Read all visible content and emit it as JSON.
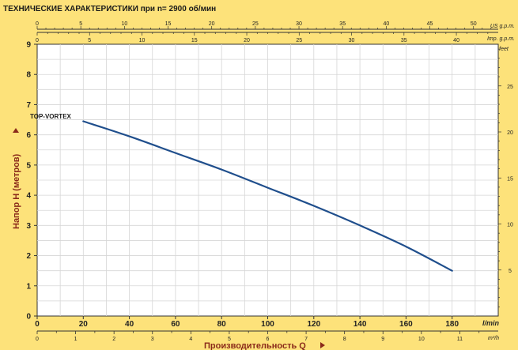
{
  "chart_data": {
    "type": "line",
    "title": "ТЕХНИЧЕСКИЕ ХАРАКТЕРИСТИКИ при n= 2900 об/мин",
    "xlabel": "Производительность Q",
    "ylabel": "Напор Н  (метров)",
    "x_unit": "l/min",
    "xlim": [
      0,
      200
    ],
    "ylim": [
      0,
      9
    ],
    "x_ticks": [
      0,
      20,
      40,
      60,
      80,
      100,
      120,
      140,
      160,
      180
    ],
    "y_ticks": [
      0,
      1,
      2,
      3,
      4,
      5,
      6,
      7,
      8,
      9
    ],
    "secondary_axes": {
      "m3h": {
        "unit": "m³/h",
        "range": [
          0,
          12
        ],
        "ticks": [
          0,
          1,
          2,
          3,
          4,
          5,
          6,
          7,
          8,
          9,
          10,
          11
        ]
      },
      "us_gpm": {
        "unit": "US g.p.m.",
        "range": [
          0,
          52.834
        ],
        "ticks": [
          0,
          5,
          10,
          15,
          20,
          25,
          30,
          35,
          40,
          45,
          50
        ]
      },
      "imp_gpm": {
        "unit": "Imp. g.p.m.",
        "range": [
          0,
          43.994
        ],
        "ticks": [
          0,
          5,
          10,
          15,
          20,
          25,
          30,
          35,
          40
        ]
      },
      "feet": {
        "unit": "feet",
        "range": [
          0,
          29.528
        ],
        "ticks": [
          5,
          10,
          15,
          20,
          25
        ]
      }
    },
    "grid": true,
    "series": [
      {
        "name": "TOP-VORTEX",
        "color": "#1f4e8c",
        "x": [
          20,
          40,
          60,
          80,
          100,
          120,
          140,
          160,
          180
        ],
        "y": [
          6.45,
          5.95,
          5.4,
          4.85,
          4.25,
          3.65,
          3.0,
          2.3,
          1.5
        ]
      }
    ]
  },
  "colors": {
    "background": "#fde27a",
    "plot": "#ffffff",
    "grid": "#d6d6d6",
    "axis_label": "#8a2a1a",
    "arrow": "#8a2a1a"
  }
}
